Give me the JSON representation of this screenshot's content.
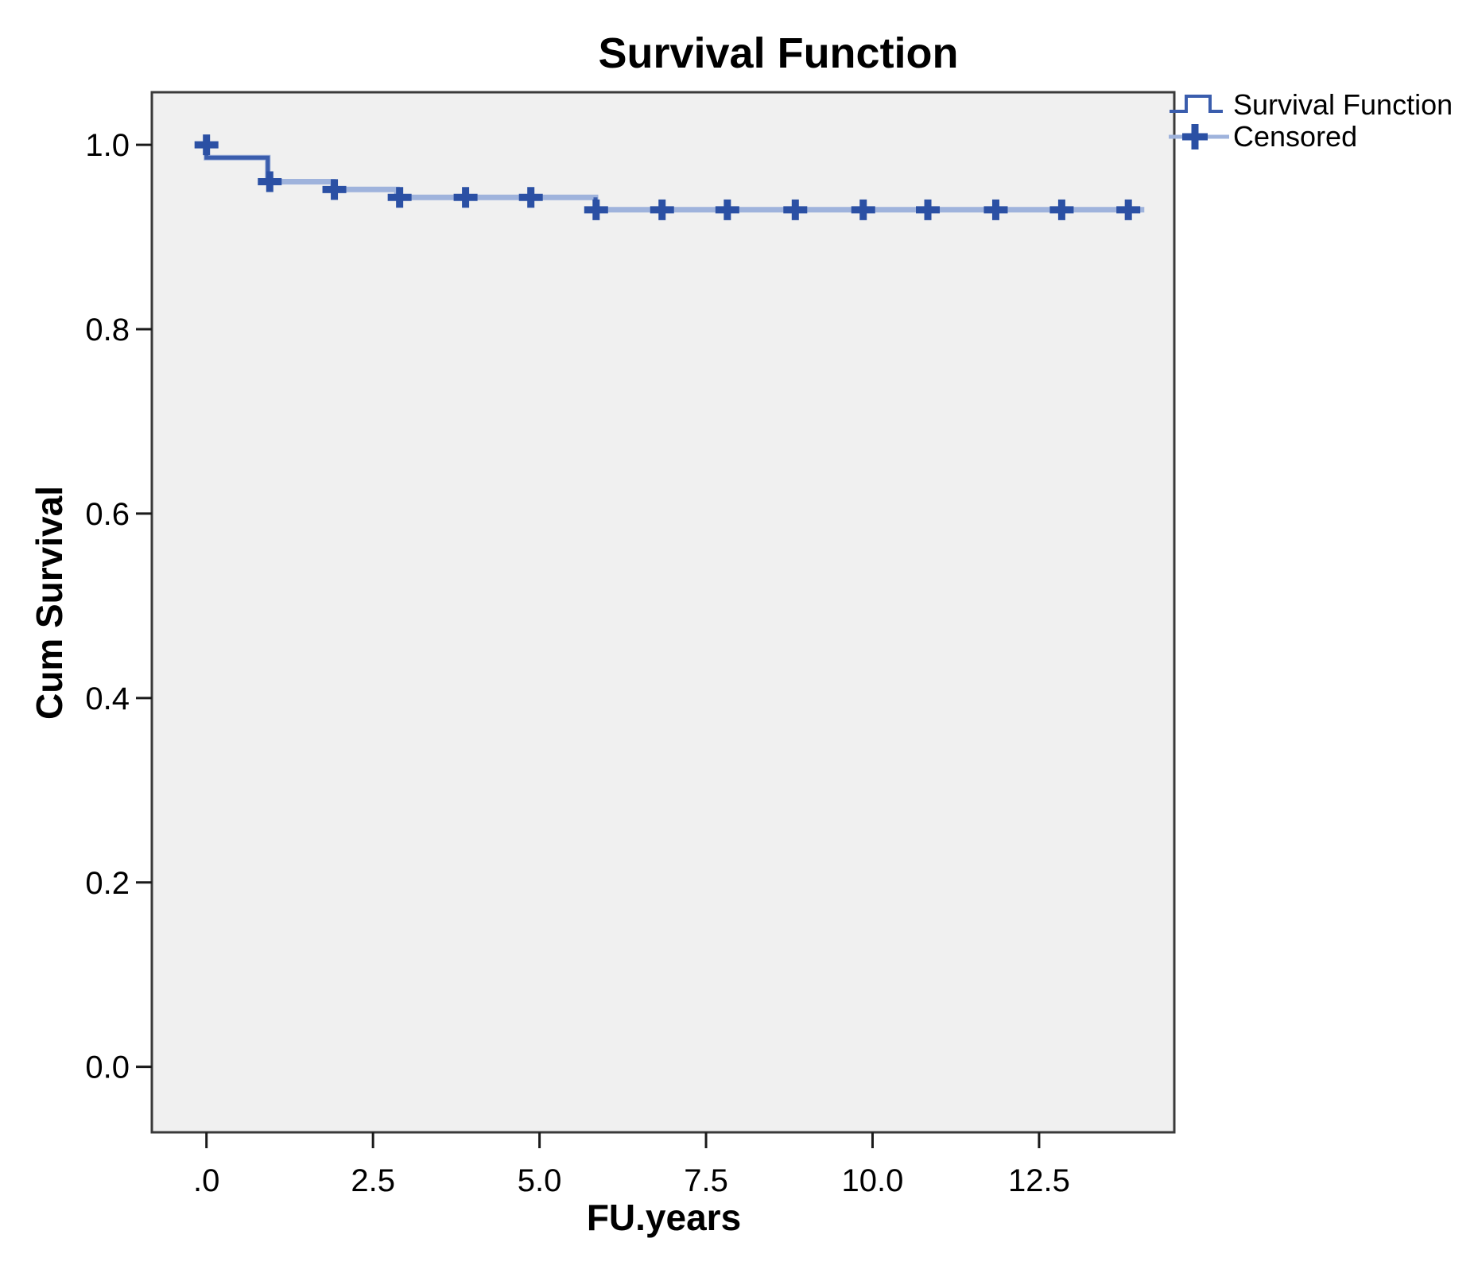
{
  "chart_data": {
    "type": "line",
    "subtype": "kaplan-meier-step",
    "title": "Survival Function",
    "xlabel": "FU.years",
    "ylabel": "Cum Survival",
    "xlim": [
      -0.82,
      14.53
    ],
    "ylim": [
      -0.071,
      1.057
    ],
    "x_ticks": [
      0,
      2.5,
      5,
      7.5,
      10,
      12.5
    ],
    "x_tick_labels": [
      ".0",
      "2.5",
      "5.0",
      "7.5",
      "10.0",
      "12.5"
    ],
    "y_ticks": [
      0.0,
      0.2,
      0.4,
      0.6,
      0.8,
      1.0
    ],
    "y_tick_labels": [
      "0.0",
      "0.2",
      "0.4",
      "0.6",
      "0.8",
      "1.0"
    ],
    "grid": false,
    "legend_position": "top-right-outside",
    "series": [
      {
        "name": "Survival Function",
        "type": "step",
        "points": [
          [
            0,
            1.0
          ],
          [
            0,
            0.986
          ],
          [
            0.92,
            0.986
          ],
          [
            0.92,
            0.96
          ],
          [
            1.9,
            0.96
          ],
          [
            1.9,
            0.9515
          ],
          [
            2.86,
            0.9515
          ],
          [
            2.86,
            0.943
          ],
          [
            5.84,
            0.943
          ],
          [
            5.84,
            0.9295
          ],
          [
            14.08,
            0.9295
          ]
        ]
      },
      {
        "name": "Censored",
        "type": "scatter-plus",
        "points": [
          [
            0,
            1.0
          ],
          [
            0.95,
            0.96
          ],
          [
            1.92,
            0.9515
          ],
          [
            2.9,
            0.943
          ],
          [
            3.89,
            0.943
          ],
          [
            4.87,
            0.943
          ],
          [
            5.85,
            0.9295
          ],
          [
            6.84,
            0.9295
          ],
          [
            7.82,
            0.9295
          ],
          [
            8.84,
            0.9295
          ],
          [
            9.86,
            0.9295
          ],
          [
            10.83,
            0.9295
          ],
          [
            11.85,
            0.9295
          ],
          [
            12.84,
            0.9295
          ],
          [
            13.84,
            0.9295
          ]
        ]
      }
    ],
    "colors": {
      "line_light": "#9fb3dc",
      "line_dark": "#3a5dad",
      "marker": "#2b50a4",
      "plot_background": "#f0f0f0",
      "plot_border": "#3a3a3a",
      "tick": "#1a1a1a",
      "text": "#000000",
      "page_background": "#ffffff"
    }
  },
  "legend": {
    "items": [
      {
        "label": "Survival Function",
        "icon": "step-line-icon"
      },
      {
        "label": "Censored",
        "icon": "plus-icon"
      }
    ]
  }
}
